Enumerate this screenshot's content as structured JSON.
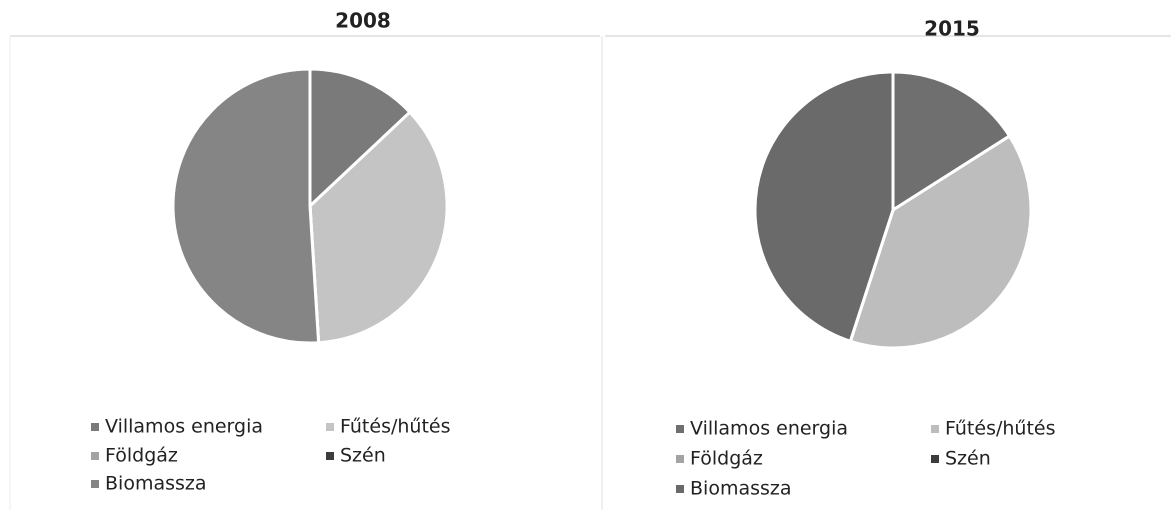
{
  "chart_data": [
    {
      "type": "pie",
      "title": "2008",
      "categories": [
        "Villamos energia",
        "Fűtés/hűtés",
        "Földgáz",
        "Szén",
        "Biomassza"
      ],
      "values": [
        13,
        36,
        0,
        0,
        51
      ],
      "colors": [
        "#7a7a7a",
        "#c4c4c4",
        "#a3a3a3",
        "#3c3c3c",
        "#858585"
      ]
    },
    {
      "type": "pie",
      "title": "2015",
      "categories": [
        "Villamos energia",
        "Fűtés/hűtés",
        "Földgáz",
        "Szén",
        "Biomassza"
      ],
      "values": [
        16,
        39,
        0,
        0,
        45
      ],
      "colors": [
        "#6f6f6f",
        "#bdbdbd",
        "#a3a3a3",
        "#3c3c3c",
        "#6a6a6a"
      ]
    }
  ]
}
